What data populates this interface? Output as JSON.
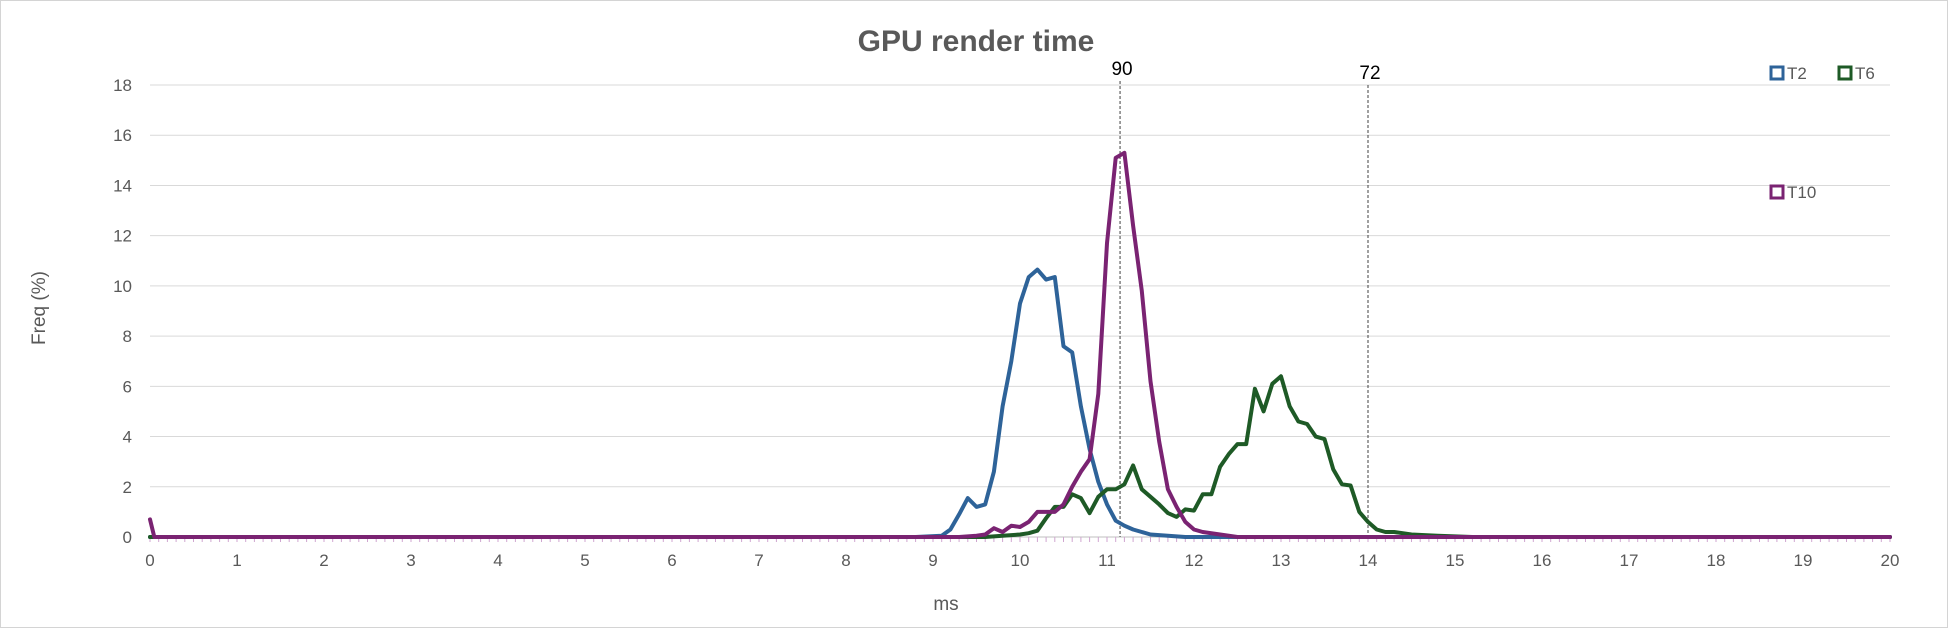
{
  "chart_data": {
    "type": "line",
    "title": "GPU render time",
    "xlabel": "ms",
    "ylabel": "Freq (%)",
    "xlim": [
      0,
      20
    ],
    "ylim": [
      0,
      18
    ],
    "x_ticks": [
      "0",
      "1",
      "2",
      "3",
      "4",
      "5",
      "6",
      "7",
      "8",
      "9",
      "10",
      "11",
      "12",
      "13",
      "14",
      "15",
      "16",
      "17",
      "18",
      "19",
      "20"
    ],
    "y_ticks": [
      "0",
      "2",
      "4",
      "6",
      "8",
      "10",
      "12",
      "14",
      "16",
      "18"
    ],
    "grid": true,
    "legend_position": "top-right",
    "markers": [
      {
        "label": "90",
        "x": 11.15
      },
      {
        "label": "72",
        "x": 14.0
      }
    ],
    "series": [
      {
        "name": "T2",
        "color": "#2e6399",
        "points": [
          [
            0,
            0
          ],
          [
            8.8,
            0
          ],
          [
            9.1,
            0.05
          ],
          [
            9.2,
            0.3
          ],
          [
            9.3,
            0.9
          ],
          [
            9.4,
            1.55
          ],
          [
            9.5,
            1.2
          ],
          [
            9.6,
            1.3
          ],
          [
            9.7,
            2.6
          ],
          [
            9.8,
            5.2
          ],
          [
            9.9,
            7.0
          ],
          [
            10.0,
            9.3
          ],
          [
            10.1,
            10.35
          ],
          [
            10.2,
            10.65
          ],
          [
            10.3,
            10.25
          ],
          [
            10.4,
            10.35
          ],
          [
            10.5,
            7.6
          ],
          [
            10.6,
            7.35
          ],
          [
            10.7,
            5.2
          ],
          [
            10.8,
            3.5
          ],
          [
            10.9,
            2.2
          ],
          [
            11.0,
            1.3
          ],
          [
            11.1,
            0.65
          ],
          [
            11.2,
            0.45
          ],
          [
            11.3,
            0.3
          ],
          [
            11.4,
            0.2
          ],
          [
            11.5,
            0.1
          ],
          [
            11.7,
            0.05
          ],
          [
            11.9,
            0
          ],
          [
            20,
            0
          ]
        ]
      },
      {
        "name": "T6",
        "color": "#1e5a26",
        "points": [
          [
            0,
            0
          ],
          [
            9.6,
            0
          ],
          [
            9.8,
            0.05
          ],
          [
            10.0,
            0.1
          ],
          [
            10.1,
            0.15
          ],
          [
            10.2,
            0.25
          ],
          [
            10.3,
            0.75
          ],
          [
            10.4,
            1.2
          ],
          [
            10.5,
            1.2
          ],
          [
            10.6,
            1.7
          ],
          [
            10.7,
            1.55
          ],
          [
            10.8,
            0.95
          ],
          [
            10.9,
            1.6
          ],
          [
            11.0,
            1.9
          ],
          [
            11.1,
            1.9
          ],
          [
            11.2,
            2.1
          ],
          [
            11.3,
            2.85
          ],
          [
            11.4,
            1.9
          ],
          [
            11.5,
            1.6
          ],
          [
            11.6,
            1.3
          ],
          [
            11.7,
            0.95
          ],
          [
            11.8,
            0.8
          ],
          [
            11.9,
            1.1
          ],
          [
            12.0,
            1.05
          ],
          [
            12.1,
            1.7
          ],
          [
            12.2,
            1.7
          ],
          [
            12.3,
            2.8
          ],
          [
            12.4,
            3.3
          ],
          [
            12.5,
            3.7
          ],
          [
            12.6,
            3.7
          ],
          [
            12.7,
            5.9
          ],
          [
            12.8,
            5.0
          ],
          [
            12.9,
            6.1
          ],
          [
            13.0,
            6.4
          ],
          [
            13.1,
            5.2
          ],
          [
            13.2,
            4.6
          ],
          [
            13.3,
            4.5
          ],
          [
            13.4,
            4.0
          ],
          [
            13.5,
            3.9
          ],
          [
            13.6,
            2.7
          ],
          [
            13.7,
            2.1
          ],
          [
            13.8,
            2.05
          ],
          [
            13.9,
            1.0
          ],
          [
            14.0,
            0.6
          ],
          [
            14.1,
            0.3
          ],
          [
            14.2,
            0.2
          ],
          [
            14.3,
            0.2
          ],
          [
            14.5,
            0.1
          ],
          [
            14.8,
            0.05
          ],
          [
            15.2,
            0
          ],
          [
            20,
            0
          ]
        ]
      },
      {
        "name": "T10",
        "color": "#7a2372",
        "points": [
          [
            0,
            0.7
          ],
          [
            0.05,
            0
          ],
          [
            9.3,
            0
          ],
          [
            9.5,
            0.05
          ],
          [
            9.6,
            0.1
          ],
          [
            9.7,
            0.35
          ],
          [
            9.8,
            0.2
          ],
          [
            9.9,
            0.45
          ],
          [
            10.0,
            0.4
          ],
          [
            10.1,
            0.6
          ],
          [
            10.2,
            1.0
          ],
          [
            10.3,
            1.0
          ],
          [
            10.4,
            1.0
          ],
          [
            10.5,
            1.3
          ],
          [
            10.6,
            2.0
          ],
          [
            10.7,
            2.6
          ],
          [
            10.8,
            3.1
          ],
          [
            10.9,
            5.7
          ],
          [
            11.0,
            11.7
          ],
          [
            11.1,
            15.1
          ],
          [
            11.2,
            15.3
          ],
          [
            11.3,
            12.4
          ],
          [
            11.4,
            9.8
          ],
          [
            11.5,
            6.2
          ],
          [
            11.6,
            3.8
          ],
          [
            11.7,
            1.9
          ],
          [
            11.8,
            1.2
          ],
          [
            11.9,
            0.6
          ],
          [
            12.0,
            0.3
          ],
          [
            12.1,
            0.2
          ],
          [
            12.3,
            0.1
          ],
          [
            12.5,
            0
          ],
          [
            20,
            0
          ]
        ]
      }
    ]
  }
}
